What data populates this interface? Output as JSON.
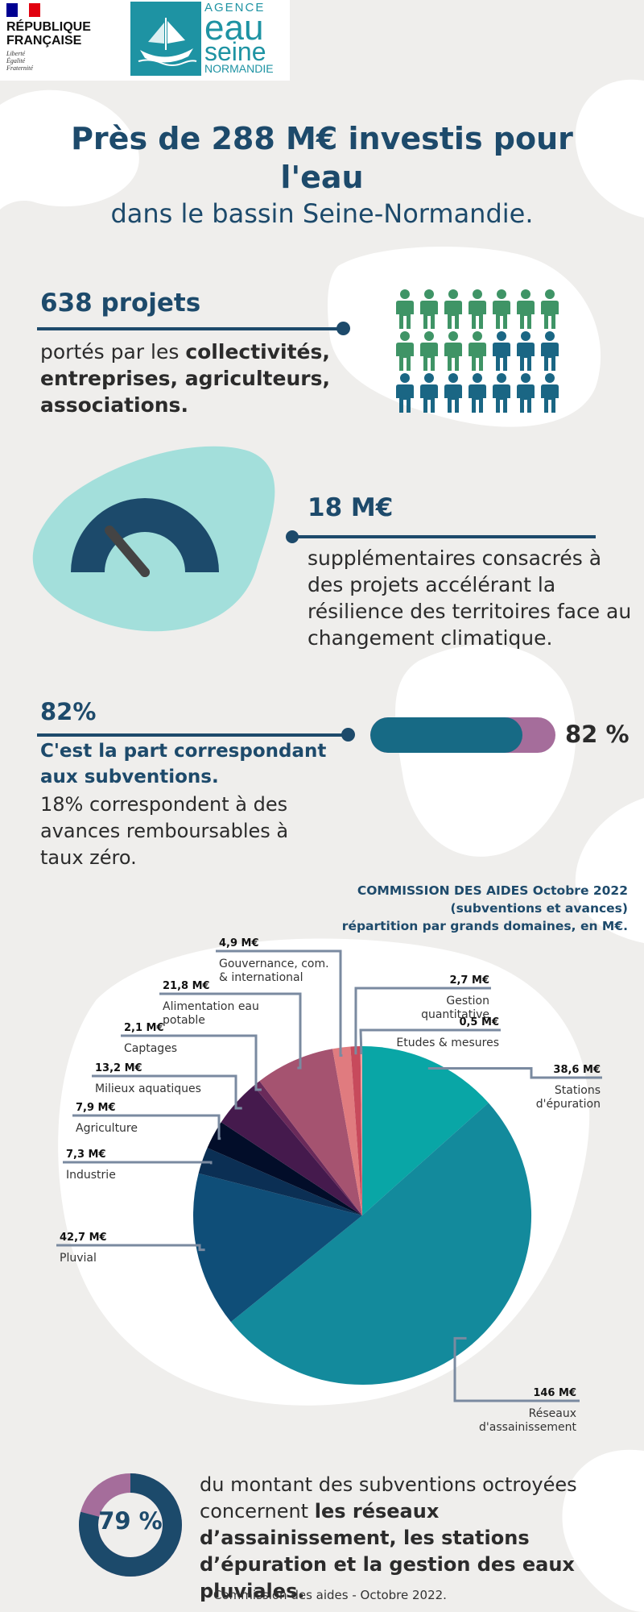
{
  "header": {
    "rf_name": "RÉPUBLIQUE\nFRANÇAISE",
    "rf_motto": "Liberté\nÉgalité\nFraternité",
    "agency": {
      "l1": "AGENCE",
      "l2": "eau",
      "l3": "seine",
      "l4": "NORMANDIE"
    }
  },
  "title": {
    "main": "Près de 288 M€ investis pour l'eau",
    "sub": "dans le bassin Seine-Normandie."
  },
  "section1": {
    "title": "638 projets",
    "text_pre": "portés par les ",
    "text_bold": "collectivités, entreprises, agriculteurs, associations.",
    "people_colors": [
      "#3f9466",
      "#3f9466",
      "#3f9466",
      "#3f9466",
      "#3f9466",
      "#3f9466",
      "#3f9466",
      "#3f9466",
      "#3f9466",
      "#3f9466",
      "#3f9466",
      "#1a6684",
      "#1a6684",
      "#1a6684",
      "#1a6684",
      "#1a6684",
      "#1a6684",
      "#1a6684",
      "#1a6684",
      "#1a6684",
      "#1a6684"
    ]
  },
  "section2": {
    "title": "18 M€",
    "text": "supplémentaires consacrés à des projets accélérant la résilience des territoires face au changement climatique."
  },
  "section3": {
    "title": "82%",
    "bold": "C'est la part correspondant aux subventions.",
    "text": "18% correspondent à des avances remboursables à taux zéro.",
    "progress_value": 82,
    "progress_label": "82 %"
  },
  "chart_title": {
    "l1": "COMMISSION DES AIDES Octobre 2022",
    "l2": "(subventions et avances)",
    "l3": "répartition par grands domaines, en M€."
  },
  "chart_data": {
    "type": "pie",
    "unit": "M€",
    "start_angle_deg": 0,
    "slices": [
      {
        "label": "Stations d'épuration",
        "label_lines": [
          "Stations",
          "d'épuration"
        ],
        "value": 38.6,
        "value_label": "38,6 M€",
        "color": "#09a6a6"
      },
      {
        "label": "Réseaux d'assainissement",
        "label_lines": [
          "Réseaux",
          "d'assainissement"
        ],
        "value": 146,
        "value_label": "146 M€",
        "color": "#138a9c"
      },
      {
        "label": "Pluvial",
        "label_lines": [
          "Pluvial"
        ],
        "value": 42.7,
        "value_label": "42,7 M€",
        "color": "#0f4e78"
      },
      {
        "label": "Industrie",
        "label_lines": [
          "Industrie"
        ],
        "value": 7.3,
        "value_label": "7,3 M€",
        "color": "#0b2f54"
      },
      {
        "label": "Agriculture",
        "label_lines": [
          "Agriculture"
        ],
        "value": 7.9,
        "value_label": "7,9 M€",
        "color": "#020d29"
      },
      {
        "label": "Milieux aquatiques",
        "label_lines": [
          "Milieux aquatiques"
        ],
        "value": 13.2,
        "value_label": "13,2 M€",
        "color": "#451a4d"
      },
      {
        "label": "Captages",
        "label_lines": [
          "Captages"
        ],
        "value": 2.1,
        "value_label": "2,1 M€",
        "color": "#6a2a5a"
      },
      {
        "label": "Alimentation eau potable",
        "label_lines": [
          "Alimentation eau",
          "potable"
        ],
        "value": 21.8,
        "value_label": "21,8 M€",
        "color": "#a55370"
      },
      {
        "label": "Gouvernance, com. & international",
        "label_lines": [
          "Gouvernance, com.",
          "& international"
        ],
        "value": 4.9,
        "value_label": "4,9 M€",
        "color": "#e07b7f"
      },
      {
        "label": "Gestion quantitative",
        "label_lines": [
          "Gestion",
          "quantitative"
        ],
        "value": 2.7,
        "value_label": "2,7 M€",
        "color": "#c74a5c"
      },
      {
        "label": "Etudes & mesures",
        "label_lines": [
          "Etudes & mesures"
        ],
        "value": 0.5,
        "value_label": "0,5 M€",
        "color": "#f0a0a0"
      }
    ]
  },
  "bottom": {
    "ring_value": 79,
    "ring_label": "79 %",
    "text_pre": "du montant des subventions octroyées concernent ",
    "text_bold": "les réseaux d’assainissement, les stations d’épuration et la gestion des eaux  pluviales.",
    "footer": "Commission des aides - Octobre 2022."
  }
}
